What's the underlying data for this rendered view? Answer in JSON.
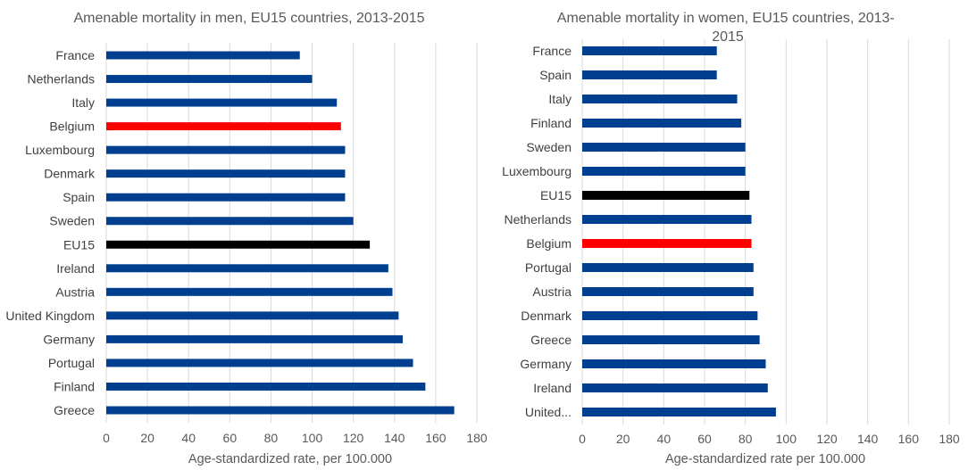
{
  "chart_data": [
    {
      "type": "bar",
      "orientation": "horizontal",
      "title": "Amenable mortality in men, EU15 countries, 2013-2015",
      "xlabel": "Age-standardized rate, per 100.000",
      "ylabel": "",
      "xlim": [
        0,
        180
      ],
      "ticks": [
        "0",
        "20",
        "40",
        "60",
        "80",
        "100",
        "120",
        "140",
        "160",
        "180"
      ],
      "grid": true,
      "categories": [
        "France",
        "Netherlands",
        "Italy",
        "Belgium",
        "Luxembourg",
        "Denmark",
        "Spain",
        "Sweden",
        "EU15",
        "Ireland",
        "Austria",
        "United Kingdom",
        "Germany",
        "Portugal",
        "Finland",
        "Greece"
      ],
      "values": [
        94,
        100,
        112,
        114,
        116,
        116,
        116,
        120,
        128,
        137,
        139,
        142,
        144,
        149,
        155,
        169
      ],
      "bar_colors": [
        "#003f8f",
        "#003f8f",
        "#003f8f",
        "#ff0000",
        "#003f8f",
        "#003f8f",
        "#003f8f",
        "#003f8f",
        "#000000",
        "#003f8f",
        "#003f8f",
        "#003f8f",
        "#003f8f",
        "#003f8f",
        "#003f8f",
        "#003f8f"
      ]
    },
    {
      "type": "bar",
      "orientation": "horizontal",
      "title_lines": [
        "Amenable mortality in women, EU15 countries, 2013-",
        "2015"
      ],
      "xlabel": "Age-standardized rate per 100.000",
      "ylabel": "",
      "xlim": [
        0,
        180
      ],
      "ticks": [
        "0",
        "20",
        "40",
        "60",
        "80",
        "100",
        "120",
        "140",
        "160",
        "180"
      ],
      "grid": true,
      "categories": [
        "France",
        "Spain",
        "Italy",
        "Finland",
        "Sweden",
        "Luxembourg",
        "EU15",
        "Netherlands",
        "Belgium",
        "Portugal",
        "Austria",
        "Denmark",
        "Greece",
        "Germany",
        "Ireland",
        "United..."
      ],
      "values": [
        66,
        66,
        76,
        78,
        80,
        80,
        82,
        83,
        83,
        84,
        84,
        86,
        87,
        90,
        91,
        95
      ],
      "bar_colors": [
        "#003f8f",
        "#003f8f",
        "#003f8f",
        "#003f8f",
        "#003f8f",
        "#003f8f",
        "#000000",
        "#003f8f",
        "#ff0000",
        "#003f8f",
        "#003f8f",
        "#003f8f",
        "#003f8f",
        "#003f8f",
        "#003f8f",
        "#003f8f"
      ]
    }
  ]
}
